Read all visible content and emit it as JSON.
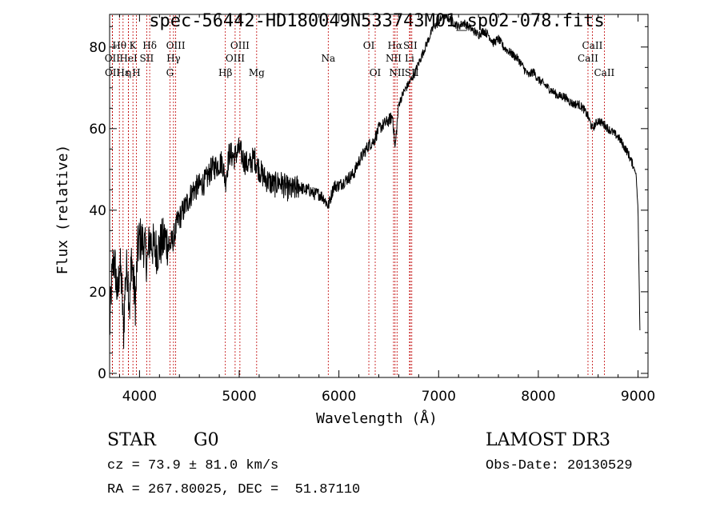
{
  "chart_data": {
    "type": "line",
    "title": "spec-56442-HD180049N533743M01_sp02-078.fits",
    "xlabel": "Wavelength (Å)",
    "ylabel": "Flux (relative)",
    "xlim": [
      3700,
      9100
    ],
    "ylim": [
      -1,
      88
    ],
    "x_ticks": [
      4000,
      5000,
      6000,
      7000,
      8000,
      9000
    ],
    "y_ticks": [
      0,
      20,
      40,
      60,
      80
    ],
    "grid": false,
    "series": [
      {
        "x": [
          3700,
          3720,
          3740,
          3760,
          3780,
          3800,
          3820,
          3840,
          3860,
          3880,
          3900,
          3920,
          3940,
          3960,
          3980,
          4000,
          4040,
          4080,
          4100,
          4140,
          4180,
          4220,
          4260,
          4300,
          4340,
          4380,
          4420,
          4480,
          4540,
          4600,
          4660,
          4720,
          4780,
          4830,
          4861,
          4900,
          4950,
          5000,
          5050,
          5100,
          5150,
          5200,
          5250,
          5300,
          5350,
          5400,
          5450,
          5500,
          5550,
          5600,
          5650,
          5700,
          5750,
          5800,
          5850,
          5893,
          5950,
          6000,
          6050,
          6100,
          6150,
          6200,
          6250,
          6300,
          6350,
          6400,
          6450,
          6500,
          6540,
          6563,
          6600,
          6650,
          6700,
          6750,
          6800,
          6850,
          6900,
          6950,
          7000,
          7050,
          7100,
          7150,
          7200,
          7250,
          7300,
          7350,
          7400,
          7450,
          7500,
          7550,
          7600,
          7650,
          7700,
          7750,
          7800,
          7850,
          7900,
          7950,
          8000,
          8050,
          8100,
          8150,
          8200,
          8250,
          8300,
          8350,
          8400,
          8450,
          8498,
          8542,
          8600,
          8662,
          8700,
          8750,
          8800,
          8850,
          8900,
          8950,
          8980,
          9000,
          9020
        ],
        "y": [
          10,
          22,
          28,
          25,
          18,
          27,
          22,
          10,
          24,
          26,
          16,
          29,
          22,
          17,
          30,
          33,
          32,
          27,
          33,
          31,
          30,
          32,
          33,
          31,
          33,
          37,
          39,
          42,
          45,
          46,
          47,
          50,
          51,
          52,
          47,
          54,
          53,
          55,
          52,
          51,
          53,
          50,
          48,
          47,
          46,
          47,
          46,
          45,
          45,
          46,
          45,
          45,
          44,
          44,
          43,
          41,
          46,
          46,
          47,
          48,
          49,
          52,
          54,
          56,
          57,
          60,
          61,
          62,
          63,
          55,
          66,
          69,
          71,
          73,
          76,
          79,
          82,
          85,
          86,
          88,
          87,
          86,
          85,
          86,
          85,
          84,
          83,
          84,
          83,
          81,
          82,
          80,
          79,
          78,
          77,
          75,
          73,
          74,
          72,
          71,
          70,
          69,
          68,
          68,
          67,
          66,
          66,
          65,
          63,
          60,
          62,
          61,
          60,
          59,
          58,
          56,
          54,
          51,
          49,
          40,
          9
        ]
      }
    ],
    "lines": [
      {
        "label": "Hθ",
        "x": 3798,
        "row": 1
      },
      {
        "label": "OII",
        "x": 3727,
        "row": 2
      },
      {
        "label": "OII",
        "x": 3729,
        "row": 3
      },
      {
        "label": "Hε",
        "x": 3835,
        "row": 3
      },
      {
        "label": "HeI",
        "x": 3889,
        "row": 2
      },
      {
        "label": "η",
        "x": 3889,
        "row": 3
      },
      {
        "label": "K",
        "x": 3934,
        "row": 1
      },
      {
        "label": "H",
        "x": 3969,
        "row": 3
      },
      {
        "label": "SII",
        "x": 4072,
        "row": 2
      },
      {
        "label": "Hδ",
        "x": 4102,
        "row": 1
      },
      {
        "label": "G",
        "x": 4305,
        "row": 3
      },
      {
        "label": "OIII",
        "x": 4363,
        "row": 1
      },
      {
        "label": "Hγ",
        "x": 4341,
        "row": 2
      },
      {
        "label": "Hβ",
        "x": 4861,
        "row": 3
      },
      {
        "label": "OIII",
        "x": 5007,
        "row": 1
      },
      {
        "label": "OIII",
        "x": 4959,
        "row": 2
      },
      {
        "label": "Mg",
        "x": 5175,
        "row": 3
      },
      {
        "label": "Na",
        "x": 5893,
        "row": 2
      },
      {
        "label": "OI",
        "x": 6300,
        "row": 1
      },
      {
        "label": "OI",
        "x": 6364,
        "row": 3
      },
      {
        "label": "Hα",
        "x": 6563,
        "row": 1
      },
      {
        "label": "NII",
        "x": 6548,
        "row": 2
      },
      {
        "label": "NII",
        "x": 6583,
        "row": 3
      },
      {
        "label": "SII",
        "x": 6716,
        "row": 1
      },
      {
        "label": "Li",
        "x": 6708,
        "row": 2
      },
      {
        "label": "SII",
        "x": 6731,
        "row": 3
      },
      {
        "label": "CaII",
        "x": 8542,
        "row": 1
      },
      {
        "label": "CaII",
        "x": 8498,
        "row": 2
      },
      {
        "label": "CaII",
        "x": 8662,
        "row": 3
      }
    ]
  },
  "info": {
    "object_type": "STAR",
    "subclass": "G0",
    "survey": "LAMOST DR3",
    "cz": "cz = 73.9 ± 81.0 km/s",
    "obs_date": "Obs-Date: 20130529",
    "radec": "RA = 267.80025, DEC =  51.87110"
  }
}
